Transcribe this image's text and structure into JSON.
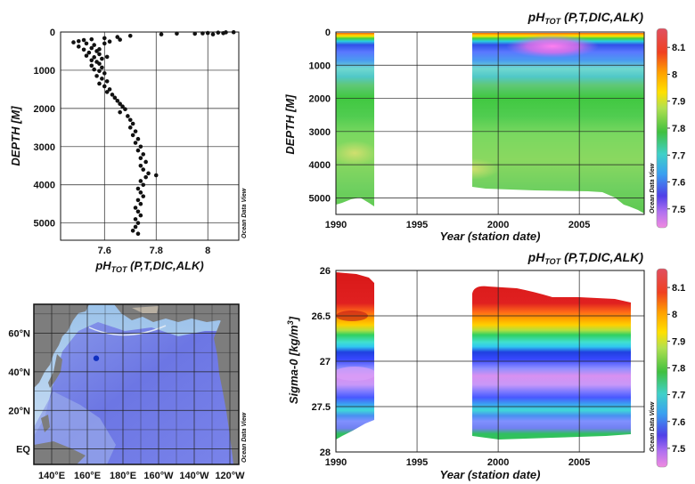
{
  "odv_label": "Ocean Data View",
  "chart_data": [
    {
      "id": "profile",
      "type": "scatter",
      "xlabel": "pH",
      "xlabel_sub": "TOT",
      "xlabel_rest": " (P,T,DIC,ALK)",
      "ylabel": "DEPTH [M]",
      "xlim": [
        7.43,
        8.12
      ],
      "ylim": [
        5450,
        0
      ],
      "xticks": [
        "7.6",
        "7.8",
        "8"
      ],
      "xtick_values": [
        7.6,
        7.8,
        8.0
      ],
      "yticks": [
        "0",
        "1000",
        "2000",
        "3000",
        "4000",
        "5000"
      ],
      "ytick_values": [
        0,
        1000,
        2000,
        3000,
        4000,
        5000
      ],
      "points": [
        [
          8.1,
          5
        ],
        [
          8.07,
          8
        ],
        [
          8.04,
          15
        ],
        [
          8.0,
          25
        ],
        [
          7.98,
          35
        ],
        [
          7.95,
          45
        ],
        [
          8.06,
          30
        ],
        [
          8.02,
          60
        ],
        [
          7.88,
          40
        ],
        [
          7.82,
          60
        ],
        [
          7.7,
          100
        ],
        [
          7.65,
          130
        ],
        [
          7.6,
          160
        ],
        [
          7.55,
          190
        ],
        [
          7.52,
          210
        ],
        [
          7.5,
          240
        ],
        [
          7.48,
          270
        ],
        [
          7.53,
          300
        ],
        [
          7.56,
          340
        ],
        [
          7.5,
          380
        ],
        [
          7.55,
          420
        ],
        [
          7.52,
          460
        ],
        [
          7.57,
          500
        ],
        [
          7.54,
          540
        ],
        [
          7.58,
          580
        ],
        [
          7.53,
          620
        ],
        [
          7.56,
          660
        ],
        [
          7.59,
          700
        ],
        [
          7.55,
          740
        ],
        [
          7.57,
          780
        ],
        [
          7.58,
          830
        ],
        [
          7.55,
          880
        ],
        [
          7.59,
          930
        ],
        [
          7.56,
          980
        ],
        [
          7.58,
          1020
        ],
        [
          7.6,
          1080
        ],
        [
          7.57,
          1150
        ],
        [
          7.59,
          1220
        ],
        [
          7.61,
          1290
        ],
        [
          7.58,
          1350
        ],
        [
          7.6,
          1420
        ],
        [
          7.62,
          1500
        ],
        [
          7.61,
          1570
        ],
        [
          7.63,
          1640
        ],
        [
          7.64,
          1720
        ],
        [
          7.65,
          1800
        ],
        [
          7.66,
          1880
        ],
        [
          7.67,
          1950
        ],
        [
          7.68,
          2020
        ],
        [
          7.66,
          2100
        ],
        [
          7.69,
          2200
        ],
        [
          7.7,
          2300
        ],
        [
          7.71,
          2400
        ],
        [
          7.7,
          2500
        ],
        [
          7.72,
          2600
        ],
        [
          7.71,
          2700
        ],
        [
          7.73,
          2800
        ],
        [
          7.72,
          2900
        ],
        [
          7.74,
          3000
        ],
        [
          7.73,
          3100
        ],
        [
          7.75,
          3200
        ],
        [
          7.74,
          3300
        ],
        [
          7.76,
          3400
        ],
        [
          7.74,
          3500
        ],
        [
          7.75,
          3600
        ],
        [
          7.77,
          3700
        ],
        [
          7.76,
          3800
        ],
        [
          7.74,
          3900
        ],
        [
          7.75,
          4000
        ],
        [
          7.73,
          4100
        ],
        [
          7.74,
          4200
        ],
        [
          7.75,
          4300
        ],
        [
          7.73,
          4400
        ],
        [
          7.74,
          4500
        ],
        [
          7.72,
          4600
        ],
        [
          7.73,
          4700
        ],
        [
          7.74,
          4800
        ],
        [
          7.72,
          4900
        ],
        [
          7.73,
          5000
        ],
        [
          7.72,
          5100
        ],
        [
          7.71,
          5200
        ],
        [
          7.73,
          5280
        ],
        [
          7.8,
          3750
        ],
        [
          7.6,
          300
        ],
        [
          7.62,
          250
        ],
        [
          7.66,
          200
        ],
        [
          7.58,
          450
        ],
        [
          7.61,
          650
        ]
      ]
    },
    {
      "id": "section-depth",
      "type": "heatmap",
      "title": "pH",
      "title_sub": "TOT",
      "title_rest": " (P,T,DIC,ALK)",
      "xlabel": "Year (station date)",
      "ylabel": "DEPTH [M]",
      "xlim": [
        1990,
        2009
      ],
      "ylim": [
        5500,
        0
      ],
      "xticks": [
        "1990",
        "1995",
        "2000",
        "2005"
      ],
      "xtick_values": [
        1990,
        1995,
        2000,
        2005
      ],
      "yticks": [
        "0",
        "1000",
        "2000",
        "3000",
        "4000",
        "5000"
      ],
      "ytick_values": [
        0,
        1000,
        2000,
        3000,
        4000,
        5000
      ],
      "colorbar": {
        "min": 7.43,
        "max": 8.17,
        "ticks": [
          "8.1",
          "8",
          "7.9",
          "7.8",
          "7.7",
          "7.6",
          "7.5"
        ],
        "tick_values": [
          8.1,
          8.0,
          7.9,
          7.8,
          7.7,
          7.6,
          7.5
        ]
      }
    },
    {
      "id": "section-sigma",
      "type": "heatmap",
      "title": "pH",
      "title_sub": "TOT",
      "title_rest": " (P,T,DIC,ALK)",
      "xlabel": "Year (station date)",
      "ylabel": "Sigma-0 [kg/m",
      "ylabel_sup": "3",
      "ylabel_end": "]",
      "xlim": [
        1990,
        2009
      ],
      "ylim": [
        28,
        26
      ],
      "xticks": [
        "1990",
        "1995",
        "2000",
        "2005"
      ],
      "xtick_values": [
        1990,
        1995,
        2000,
        2005
      ],
      "yticks": [
        "26",
        "26.5",
        "27",
        "27.5",
        "28"
      ],
      "ytick_values": [
        26,
        26.5,
        27,
        27.5,
        28
      ],
      "colorbar": {
        "min": 7.43,
        "max": 8.17,
        "ticks": [
          "8.1",
          "8",
          "7.9",
          "7.8",
          "7.7",
          "7.6",
          "7.5"
        ],
        "tick_values": [
          8.1,
          8.0,
          7.9,
          7.8,
          7.7,
          7.6,
          7.5
        ]
      }
    },
    {
      "id": "map",
      "type": "map",
      "lon_labels": [
        "140°E",
        "160°E",
        "180°E",
        "160°W",
        "140°W",
        "120°W"
      ],
      "lat_labels": [
        "60°N",
        "40°N",
        "20°N",
        "EQ"
      ],
      "station": {
        "lon": 165,
        "lat": 47
      },
      "station_color": "#1030c0",
      "ocean_color": "#6e78e6",
      "land_color": "#7d7d7d"
    }
  ]
}
